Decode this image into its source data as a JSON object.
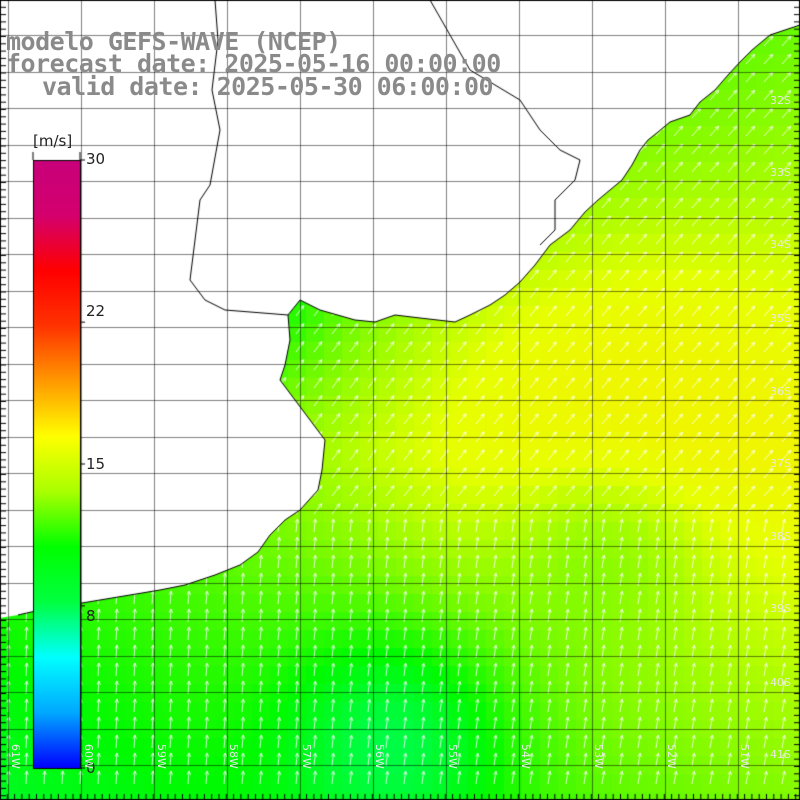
{
  "title": {
    "line1": "modelo GEFS-WAVE (NCEP)",
    "line2": "forecast date: 2025-05-16 00:00:00",
    "line3": "valid date: 2025-05-30 06:00:00"
  },
  "colorbar": {
    "unit": "[m/s]",
    "ticks": [
      "30",
      "22",
      "15",
      "8",
      "0"
    ],
    "colors": [
      "#0000ff",
      "#00a8ff",
      "#00ffff",
      "#00ff40",
      "#00ff00",
      "#aaff00",
      "#ffff00",
      "#ff9900",
      "#ff3300",
      "#ff0000",
      "#d4006e",
      "#c8007a"
    ]
  },
  "latitude_labels": [
    "32S",
    "33S",
    "34S",
    "35S",
    "36S",
    "37S",
    "38S",
    "39S",
    "40S",
    "41S"
  ],
  "longitude_labels": [
    "61W",
    "60W",
    "59W",
    "58W",
    "57W",
    "56W",
    "55W",
    "54W",
    "53W",
    "52W",
    "51W"
  ],
  "colors": {
    "land": "#ffffff",
    "coast": "#000000",
    "grid": "#000000",
    "arrows": "#ffffff",
    "title": "#8a8a8a"
  },
  "map_data": {
    "variable": "wind speed",
    "unit": "m/s",
    "scale_min": 0,
    "scale_max": 30
  }
}
